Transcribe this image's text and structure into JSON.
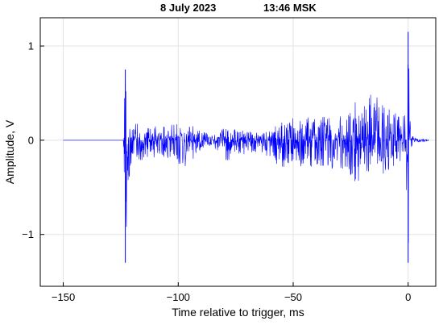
{
  "header": {
    "date": "8 July 2023",
    "time": "13:46 MSK"
  },
  "chart_data": {
    "type": "line",
    "title": "",
    "xlabel": "Time relative to trigger, ms",
    "ylabel": "Amplitude, V",
    "xlim": [
      -160,
      12
    ],
    "ylim": [
      -1.55,
      1.3
    ],
    "xticks": [
      -150,
      -100,
      -50,
      0
    ],
    "xtick_labels": [
      "−150",
      "−100",
      "−50",
      "0"
    ],
    "yticks": [
      -1,
      0,
      1
    ],
    "ytick_labels": [
      "−1",
      "0",
      "1"
    ],
    "grid": true,
    "line_color": "#0000ff",
    "series": [
      {
        "x_start": -150,
        "x_end": 9,
        "envelope_points": [
          [
            -150,
            0.0,
            0.0
          ],
          [
            -124,
            0.0,
            0.0
          ],
          [
            -123.5,
            0.5,
            -0.5
          ],
          [
            -123,
            0.75,
            -1.3
          ],
          [
            -122,
            0.35,
            -0.6
          ],
          [
            -120,
            0.25,
            -0.3
          ],
          [
            -115,
            0.18,
            -0.2
          ],
          [
            -110,
            0.15,
            -0.18
          ],
          [
            -105,
            0.15,
            -0.2
          ],
          [
            -100,
            0.2,
            -0.35
          ],
          [
            -95,
            0.18,
            -0.25
          ],
          [
            -90,
            0.1,
            -0.12
          ],
          [
            -85,
            0.05,
            -0.05
          ],
          [
            -80,
            0.15,
            -0.25
          ],
          [
            -75,
            0.12,
            -0.15
          ],
          [
            -70,
            0.1,
            -0.15
          ],
          [
            -65,
            0.08,
            -0.12
          ],
          [
            -60,
            0.12,
            -0.2
          ],
          [
            -55,
            0.2,
            -0.3
          ],
          [
            -50,
            0.25,
            -0.25
          ],
          [
            -45,
            0.25,
            -0.3
          ],
          [
            -40,
            0.3,
            -0.3
          ],
          [
            -35,
            0.28,
            -0.32
          ],
          [
            -30,
            0.3,
            -0.3
          ],
          [
            -25,
            0.38,
            -0.4
          ],
          [
            -20,
            0.45,
            -0.55
          ],
          [
            -15,
            0.5,
            -0.4
          ],
          [
            -10,
            0.35,
            -0.35
          ],
          [
            -5,
            0.3,
            -0.3
          ],
          [
            -1,
            0.3,
            -0.3
          ],
          [
            0,
            1.15,
            -1.3
          ],
          [
            1,
            0.1,
            -0.1
          ],
          [
            3,
            0.03,
            -0.03
          ],
          [
            9,
            0.01,
            -0.01
          ]
        ]
      }
    ]
  }
}
